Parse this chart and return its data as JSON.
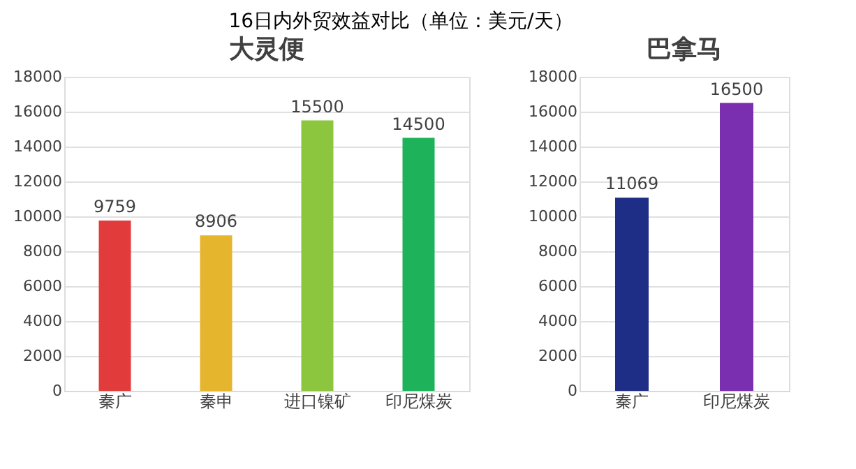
{
  "chart_data": [
    {
      "type": "bar",
      "title": "大灵便",
      "annotations": [
        "16日内外贸效益对比（单位：美元/天）"
      ],
      "categories": [
        "秦广",
        "秦申",
        "进口镍矿",
        "印尼煤炭"
      ],
      "values": [
        9759,
        8906,
        15500,
        14500
      ],
      "colors": [
        "#e23b3b",
        "#e6b52e",
        "#8cc63e",
        "#1eb35a"
      ],
      "ylim": [
        0,
        18000
      ],
      "yticks": [
        0,
        2000,
        4000,
        6000,
        8000,
        10000,
        12000,
        14000,
        16000,
        18000
      ],
      "grid": "y",
      "data_labels": true
    },
    {
      "type": "bar",
      "title": "巴拿马",
      "categories": [
        "秦广",
        "印尼煤炭"
      ],
      "values": [
        11069,
        16500
      ],
      "colors": [
        "#1e2e86",
        "#7a2fb0"
      ],
      "ylim": [
        0,
        18000
      ],
      "yticks": [
        0,
        2000,
        4000,
        6000,
        8000,
        10000,
        12000,
        14000,
        16000,
        18000
      ],
      "grid": "y",
      "data_labels": true
    }
  ]
}
